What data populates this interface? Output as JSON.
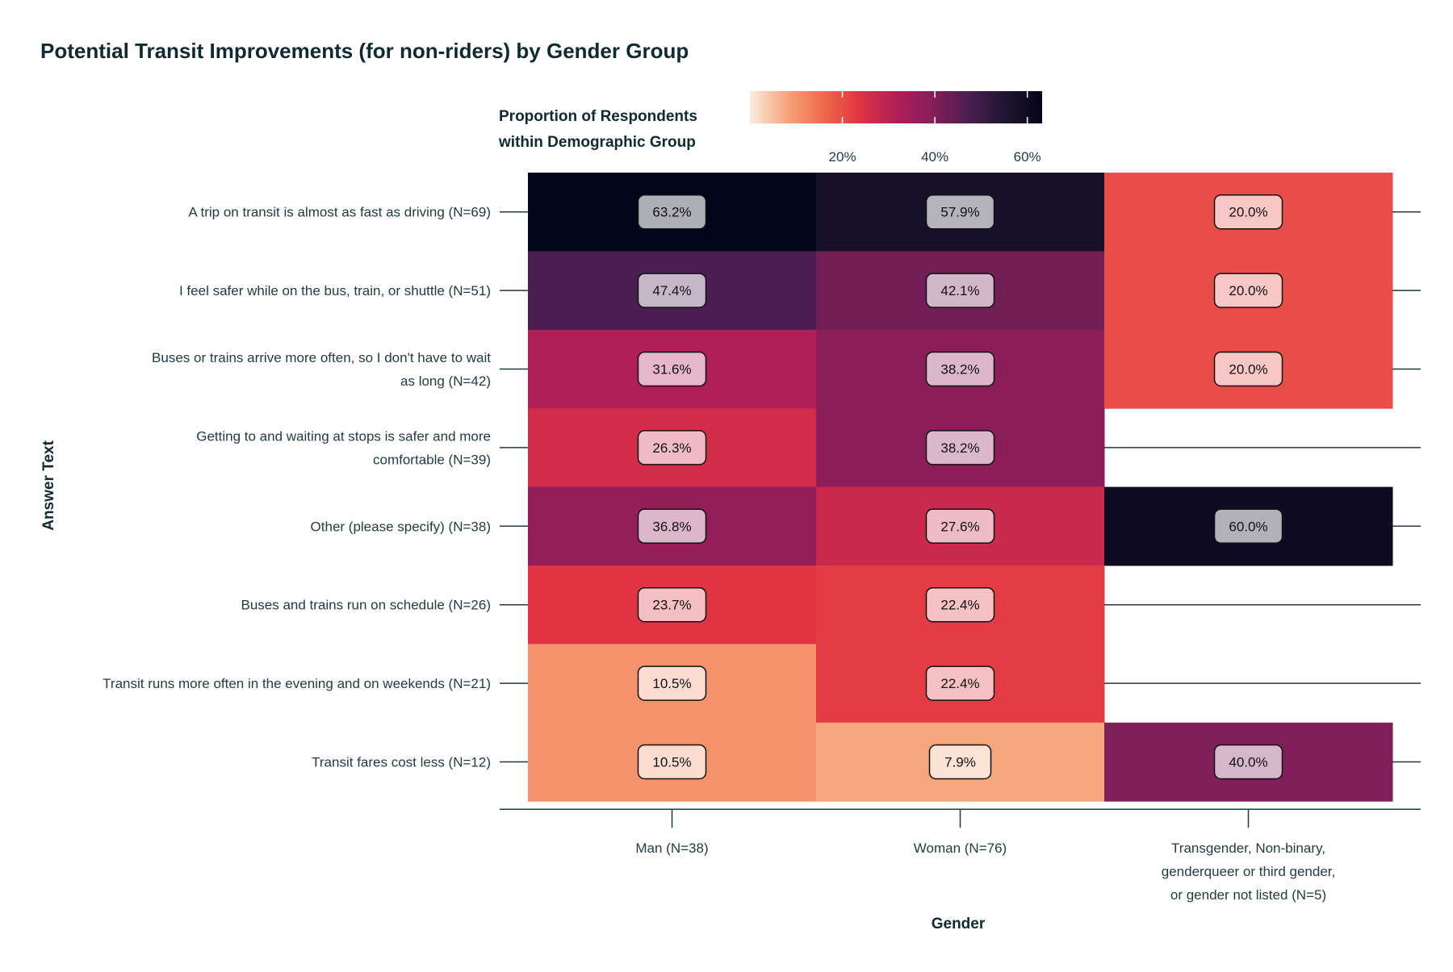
{
  "chart_data": {
    "type": "heatmap",
    "title": "Potential Transit Improvements (for non-riders) by Gender Group",
    "xlabel": "Gender",
    "ylabel": "Answer Text",
    "legend": {
      "title_lines": [
        "Proportion of Respondents",
        "within Demographic Group"
      ],
      "ticks": [
        0.2,
        0.4,
        0.6
      ],
      "tick_labels": [
        "20%",
        "40%",
        "60%"
      ],
      "range": [
        0.0,
        0.632
      ],
      "placement": "top-center"
    },
    "x_categories": [
      {
        "lines": [
          "Man (N=38)"
        ]
      },
      {
        "lines": [
          "Woman (N=76)"
        ]
      },
      {
        "lines": [
          "Transgender, Non-binary,",
          "genderqueer or third gender,",
          "or gender not listed (N=5)"
        ]
      }
    ],
    "y_categories": [
      {
        "lines": [
          "A trip on transit is almost as fast as driving (N=69)"
        ]
      },
      {
        "lines": [
          "I feel safer while on the bus, train, or shuttle (N=51)"
        ]
      },
      {
        "lines": [
          "Buses or trains arrive more often, so I don't have to wait",
          "as long (N=42)"
        ]
      },
      {
        "lines": [
          "Getting to and waiting at stops is safer and more",
          "comfortable (N=39)"
        ]
      },
      {
        "lines": [
          "Other (please specify) (N=38)"
        ]
      },
      {
        "lines": [
          "Buses and trains run on schedule (N=26)"
        ]
      },
      {
        "lines": [
          "Transit runs more often in the evening and on weekends (N=21)"
        ]
      },
      {
        "lines": [
          "Transit fares cost less (N=12)"
        ]
      }
    ],
    "values": [
      [
        0.632,
        0.579,
        0.2
      ],
      [
        0.474,
        0.421,
        0.2
      ],
      [
        0.316,
        0.382,
        0.2
      ],
      [
        0.263,
        0.382,
        null
      ],
      [
        0.368,
        0.276,
        0.6
      ],
      [
        0.237,
        0.224,
        null
      ],
      [
        0.105,
        0.224,
        null
      ],
      [
        0.105,
        0.079,
        0.4
      ]
    ],
    "value_labels": [
      [
        "63.2%",
        "57.9%",
        "20.0%"
      ],
      [
        "47.4%",
        "42.1%",
        "20.0%"
      ],
      [
        "31.6%",
        "38.2%",
        "20.0%"
      ],
      [
        "26.3%",
        "38.2%",
        null
      ],
      [
        "36.8%",
        "27.6%",
        "60.0%"
      ],
      [
        "23.7%",
        "22.4%",
        null
      ],
      [
        "10.5%",
        "22.4%",
        null
      ],
      [
        "10.5%",
        "7.9%",
        "40.0%"
      ]
    ],
    "colors": {
      "text": "#0f2a33",
      "scale": [
        "#fbebdf",
        "#f6a67c",
        "#ef6a4c",
        "#e13342",
        "#b01f56",
        "#841e5a",
        "#4b1f52",
        "#1f1530",
        "#03051a"
      ]
    }
  }
}
